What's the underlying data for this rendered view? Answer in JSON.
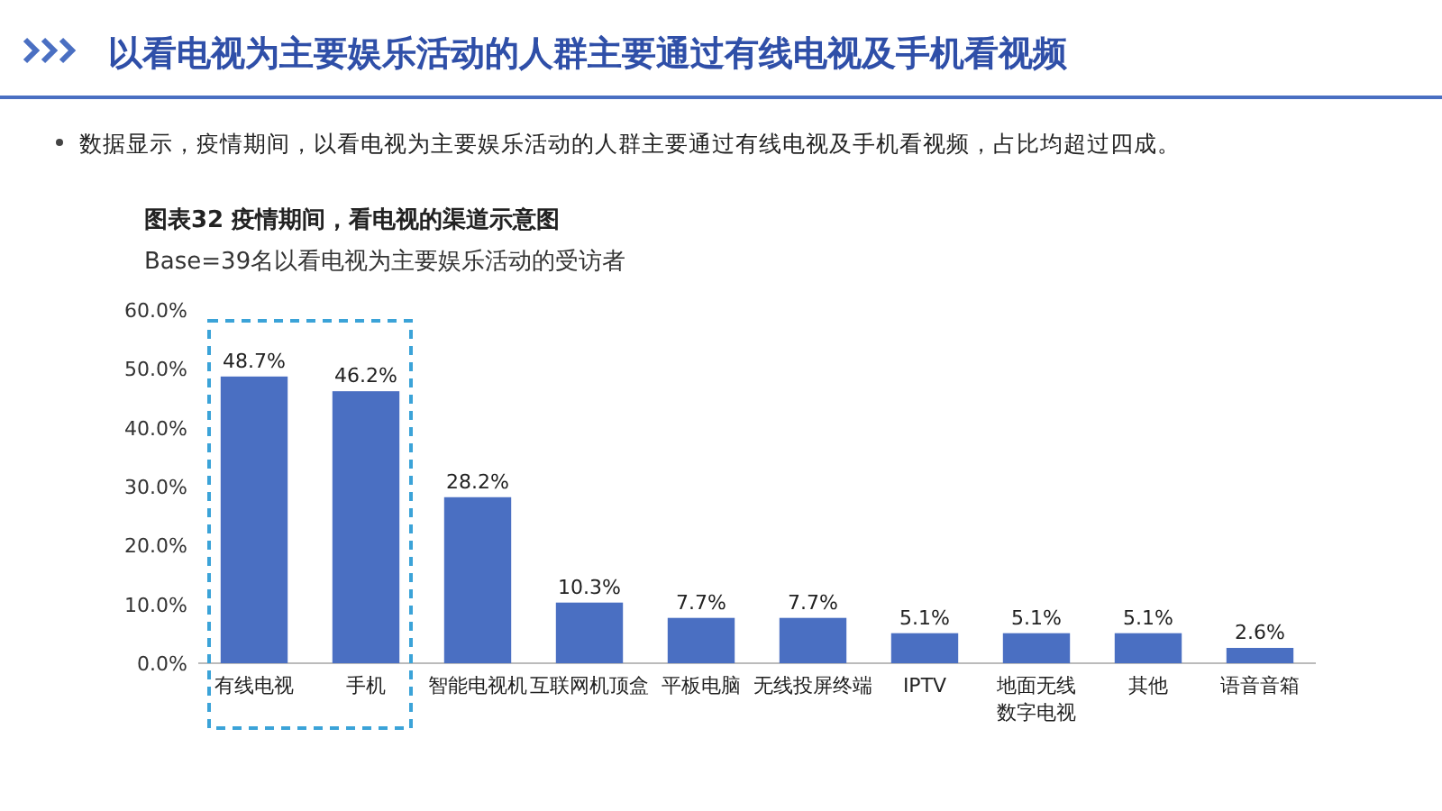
{
  "chart_data": {
    "type": "bar",
    "title": "以看电视为主要娱乐活动的人群主要通过有线电视及手机看视频",
    "subtitle": "图表32  疫情期间，看电视的渠道示意图",
    "annotations": [
      "数据显示，疫情期间，以看电视为主要娱乐活动的人群主要通过有线电视及手机看视频，占比均超过四成。",
      "Base=39名以看电视为主要娱乐活动的受访者"
    ],
    "categories": [
      "有线电视",
      "手机",
      "智能电视机",
      "互联网机顶盒",
      "平板电脑",
      "无线投屏终端",
      "IPTV",
      "地面无线数字电视",
      "其他",
      "语音音箱"
    ],
    "values": [
      48.7,
      46.2,
      28.2,
      10.3,
      7.7,
      7.7,
      5.1,
      5.1,
      5.1,
      2.6
    ],
    "value_labels": [
      "48.7%",
      "46.2%",
      "28.2%",
      "10.3%",
      "7.7%",
      "7.7%",
      "5.1%",
      "5.1%",
      "5.1%",
      "2.6%"
    ],
    "color": "#4a6fc2",
    "ylim": [
      0,
      60
    ],
    "yticks": [
      {
        "value": 0,
        "label": "0.0%"
      },
      {
        "value": 10,
        "label": "10.0%"
      },
      {
        "value": 20,
        "label": "20.0%"
      },
      {
        "value": 30,
        "label": "30.0%"
      },
      {
        "value": 40,
        "label": "40.0%"
      },
      {
        "value": 50,
        "label": "50.0%"
      },
      {
        "value": 60,
        "label": "60.0%"
      }
    ],
    "grid": false
  }
}
